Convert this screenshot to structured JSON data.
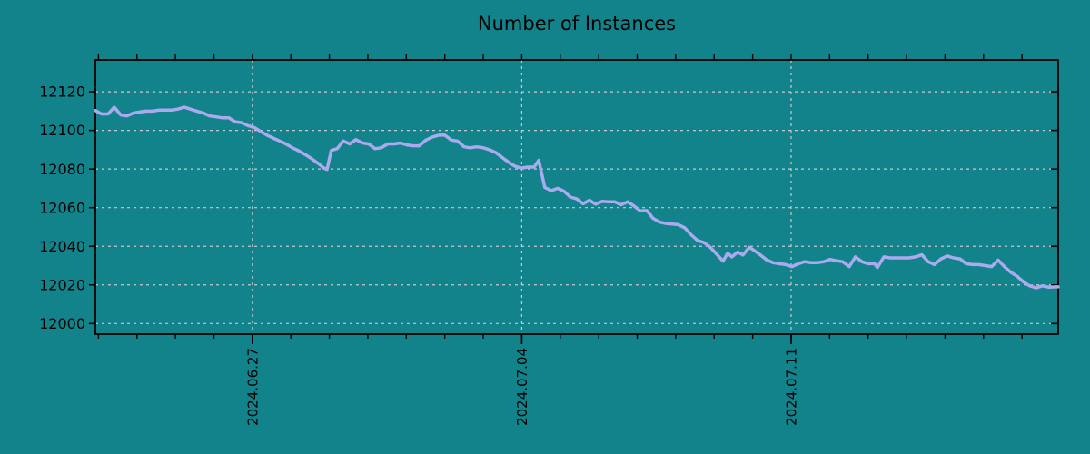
{
  "colors": {
    "background": "#12838a",
    "line": "#aaaaee",
    "grid": "#c9c9c9",
    "axis": "#000000",
    "text": "#000000"
  },
  "chart_data": {
    "type": "line",
    "title": "Number of Instances",
    "legend": false,
    "grid": true,
    "x_unit": "days relative to 2024.06.27",
    "xlim": [
      -4.08,
      20.94
    ],
    "ylim": [
      11994.5,
      12136.5
    ],
    "y_ticks": [
      12000,
      12020,
      12040,
      12060,
      12080,
      12100,
      12120
    ],
    "x_major_ticks": [
      {
        "pos": 0,
        "label": "2024.06.27"
      },
      {
        "pos": 7,
        "label": "2024.07.04"
      },
      {
        "pos": 14,
        "label": "2024.07.11"
      }
    ],
    "x_minor_ticks": [
      -4,
      -3,
      -2,
      -1,
      0,
      1,
      2,
      3,
      4,
      5,
      6,
      7,
      8,
      9,
      10,
      11,
      12,
      13,
      14,
      15,
      16,
      17,
      18,
      19,
      20
    ],
    "series": [
      {
        "name": "instances",
        "color": "#aaaaee",
        "points": [
          [
            -4.08,
            12110.3
          ],
          [
            -3.92,
            12108.5
          ],
          [
            -3.75,
            12108.5
          ],
          [
            -3.59,
            12112.0
          ],
          [
            -3.42,
            12108.0
          ],
          [
            -3.26,
            12107.5
          ],
          [
            -3.09,
            12109.0
          ],
          [
            -2.93,
            12109.5
          ],
          [
            -2.76,
            12110.0
          ],
          [
            -2.6,
            12110.0
          ],
          [
            -2.43,
            12110.5
          ],
          [
            -2.27,
            12110.5
          ],
          [
            -2.1,
            12110.5
          ],
          [
            -1.94,
            12111.0
          ],
          [
            -1.77,
            12112.0
          ],
          [
            -1.61,
            12111.0
          ],
          [
            -1.44,
            12110.0
          ],
          [
            -1.27,
            12109.0
          ],
          [
            -1.11,
            12107.5
          ],
          [
            -0.94,
            12107.0
          ],
          [
            -0.78,
            12106.5
          ],
          [
            -0.61,
            12106.5
          ],
          [
            -0.45,
            12104.5
          ],
          [
            -0.28,
            12104.0
          ],
          [
            -0.12,
            12102.5
          ],
          [
            0.05,
            12101.5
          ],
          [
            0.21,
            12099.5
          ],
          [
            0.38,
            12097.5
          ],
          [
            0.54,
            12096.0
          ],
          [
            0.71,
            12094.5
          ],
          [
            0.87,
            12093.0
          ],
          [
            1.04,
            12091.0
          ],
          [
            1.2,
            12089.5
          ],
          [
            1.37,
            12087.5
          ],
          [
            1.53,
            12085.5
          ],
          [
            1.7,
            12083.0
          ],
          [
            1.86,
            12080.5
          ],
          [
            1.94,
            12079.8
          ],
          [
            2.05,
            12089.6
          ],
          [
            2.2,
            12090.5
          ],
          [
            2.36,
            12094.5
          ],
          [
            2.53,
            12093.0
          ],
          [
            2.69,
            12095.2
          ],
          [
            2.86,
            12093.5
          ],
          [
            3.02,
            12093.0
          ],
          [
            3.19,
            12090.5
          ],
          [
            3.35,
            12091.0
          ],
          [
            3.52,
            12093.0
          ],
          [
            3.68,
            12093.0
          ],
          [
            3.85,
            12093.5
          ],
          [
            4.01,
            12092.5
          ],
          [
            4.18,
            12092.0
          ],
          [
            4.34,
            12092.0
          ],
          [
            4.51,
            12095.0
          ],
          [
            4.67,
            12096.5
          ],
          [
            4.84,
            12097.5
          ],
          [
            5.0,
            12097.5
          ],
          [
            5.17,
            12095.0
          ],
          [
            5.33,
            12094.5
          ],
          [
            5.5,
            12091.5
          ],
          [
            5.66,
            12091.0
          ],
          [
            5.83,
            12091.5
          ],
          [
            6.0,
            12091.0
          ],
          [
            6.16,
            12090.0
          ],
          [
            6.33,
            12088.5
          ],
          [
            6.49,
            12086.0
          ],
          [
            6.66,
            12083.5
          ],
          [
            6.82,
            12081.5
          ],
          [
            6.99,
            12080.5
          ],
          [
            7.15,
            12081.0
          ],
          [
            7.32,
            12081.0
          ],
          [
            7.44,
            12084.5
          ],
          [
            7.6,
            12070.5
          ],
          [
            7.77,
            12068.8
          ],
          [
            7.93,
            12070.0
          ],
          [
            8.1,
            12068.5
          ],
          [
            8.26,
            12065.5
          ],
          [
            8.43,
            12064.5
          ],
          [
            8.59,
            12062.0
          ],
          [
            8.76,
            12063.8
          ],
          [
            8.92,
            12061.8
          ],
          [
            9.09,
            12063.3
          ],
          [
            9.25,
            12063.0
          ],
          [
            9.42,
            12063.0
          ],
          [
            9.58,
            12061.5
          ],
          [
            9.75,
            12063.0
          ],
          [
            9.91,
            12061.0
          ],
          [
            10.08,
            12058.3
          ],
          [
            10.25,
            12058.5
          ],
          [
            10.41,
            12054.5
          ],
          [
            10.58,
            12052.5
          ],
          [
            10.74,
            12051.8
          ],
          [
            10.91,
            12051.5
          ],
          [
            11.07,
            12051.2
          ],
          [
            11.24,
            12049.5
          ],
          [
            11.4,
            12046.0
          ],
          [
            11.57,
            12043.0
          ],
          [
            11.73,
            12042.0
          ],
          [
            11.9,
            12039.5
          ],
          [
            12.06,
            12036.0
          ],
          [
            12.23,
            12032.3
          ],
          [
            12.35,
            12036.5
          ],
          [
            12.46,
            12034.5
          ],
          [
            12.61,
            12037.0
          ],
          [
            12.75,
            12035.5
          ],
          [
            12.91,
            12039.5
          ],
          [
            13.03,
            12038.0
          ],
          [
            13.2,
            12035.5
          ],
          [
            13.36,
            12033.0
          ],
          [
            13.53,
            12031.5
          ],
          [
            13.69,
            12031.0
          ],
          [
            13.86,
            12030.5
          ],
          [
            14.02,
            12029.5
          ],
          [
            14.19,
            12031.0
          ],
          [
            14.35,
            12032.0
          ],
          [
            14.52,
            12031.5
          ],
          [
            14.68,
            12031.5
          ],
          [
            14.85,
            12032.0
          ],
          [
            15.01,
            12033.2
          ],
          [
            15.18,
            12032.5
          ],
          [
            15.34,
            12032.0
          ],
          [
            15.51,
            12029.5
          ],
          [
            15.67,
            12034.5
          ],
          [
            15.84,
            12032.0
          ],
          [
            16.0,
            12031.0
          ],
          [
            16.17,
            12031.0
          ],
          [
            16.24,
            12029.0
          ],
          [
            16.41,
            12034.5
          ],
          [
            16.57,
            12034.0
          ],
          [
            16.74,
            12034.0
          ],
          [
            16.9,
            12034.0
          ],
          [
            17.07,
            12034.0
          ],
          [
            17.23,
            12034.5
          ],
          [
            17.4,
            12035.6
          ],
          [
            17.56,
            12032.0
          ],
          [
            17.73,
            12030.5
          ],
          [
            17.89,
            12033.5
          ],
          [
            18.06,
            12035.0
          ],
          [
            18.22,
            12034.0
          ],
          [
            18.39,
            12033.5
          ],
          [
            18.55,
            12031.0
          ],
          [
            18.72,
            12030.5
          ],
          [
            18.88,
            12030.5
          ],
          [
            19.05,
            12030.0
          ],
          [
            19.21,
            12029.5
          ],
          [
            19.38,
            12032.8
          ],
          [
            19.54,
            12029.5
          ],
          [
            19.71,
            12026.5
          ],
          [
            19.87,
            12024.5
          ],
          [
            20.04,
            12021.5
          ],
          [
            20.2,
            12019.5
          ],
          [
            20.37,
            12018.5
          ],
          [
            20.53,
            12019.5
          ],
          [
            20.7,
            12018.8
          ],
          [
            20.86,
            12019.0
          ],
          [
            20.94,
            12019.0
          ]
        ]
      }
    ]
  }
}
